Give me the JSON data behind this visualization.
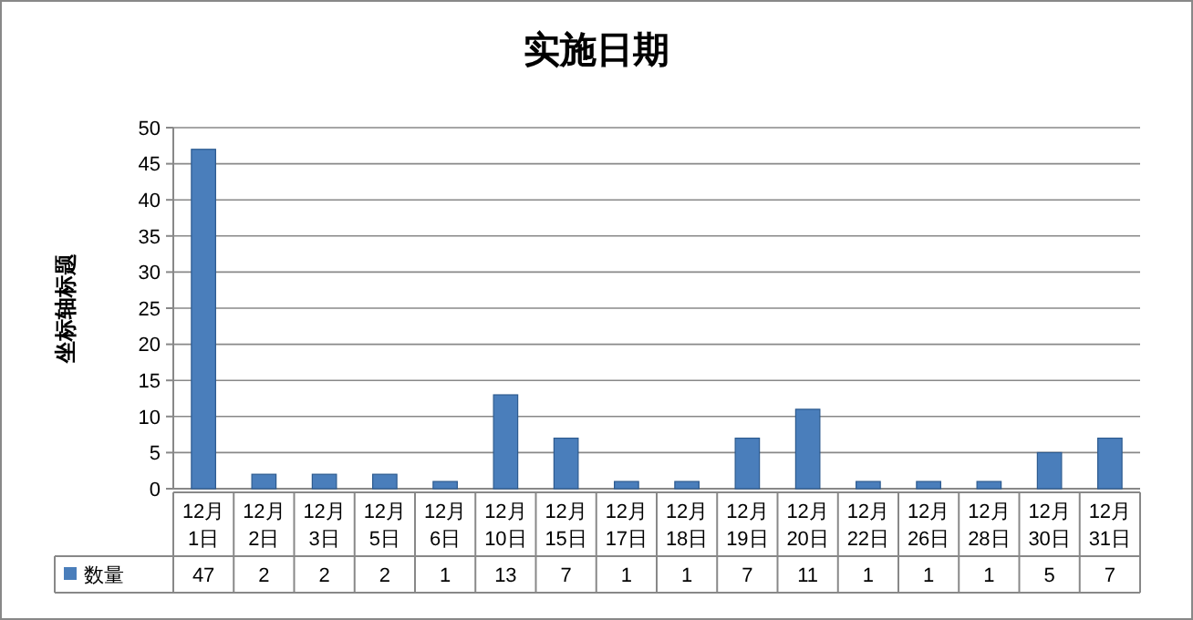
{
  "chart_data": {
    "type": "bar",
    "title": "实施日期",
    "ylabel": "坐标轴标题",
    "categories": [
      "12月\n1日",
      "12月\n2日",
      "12月\n3日",
      "12月\n5日",
      "12月\n6日",
      "12月\n10日",
      "12月\n15日",
      "12月\n17日",
      "12月\n18日",
      "12月\n19日",
      "12月\n20日",
      "12月\n22日",
      "12月\n26日",
      "12月\n28日",
      "12月\n30日",
      "12月\n31日"
    ],
    "series": [
      {
        "name": "数量",
        "color": "#4a7ebb",
        "values": [
          47,
          2,
          2,
          2,
          1,
          13,
          7,
          1,
          1,
          7,
          11,
          1,
          1,
          1,
          5,
          7
        ]
      }
    ],
    "ylim": [
      0,
      50
    ],
    "yticks": [
      0,
      5,
      10,
      15,
      20,
      25,
      30,
      35,
      40,
      45,
      50
    ],
    "grid": "y",
    "data_labels": true,
    "legend": "bottom"
  }
}
